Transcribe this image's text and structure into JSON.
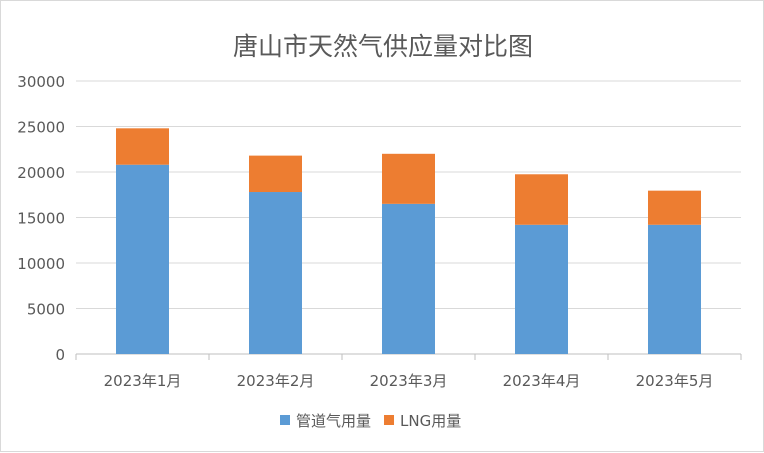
{
  "chart_data": {
    "type": "bar",
    "stacked": true,
    "title": "唐山市天然气供应量对比图",
    "categories": [
      "2023年1月",
      "2023年2月",
      "2023年3月",
      "2023年4月",
      "2023年5月"
    ],
    "series": [
      {
        "name": "管道气用量",
        "color": "#5b9bd5",
        "values": [
          20800,
          17800,
          16500,
          14200,
          14200
        ]
      },
      {
        "name": "LNG用量",
        "color": "#ed7d31",
        "values": [
          4000,
          4000,
          5500,
          5550,
          3750
        ]
      }
    ],
    "ylim": [
      0,
      30000
    ],
    "yticks": [
      0,
      5000,
      10000,
      15000,
      20000,
      25000,
      30000
    ],
    "grid": true,
    "legend": "bottom"
  }
}
